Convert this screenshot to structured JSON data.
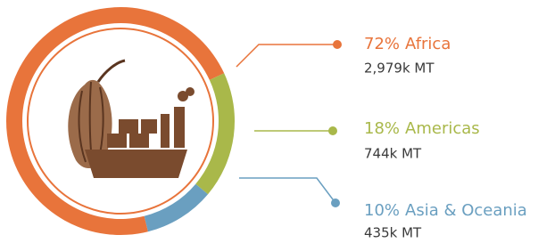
{
  "chart_data": {
    "type": "donut",
    "categories": [
      "Africa",
      "Americas",
      "Asia & Oceania"
    ],
    "values": [
      72,
      18,
      10
    ],
    "value_labels": [
      "72%",
      "18%",
      "10%"
    ],
    "volume_labels": [
      "2,979k MT",
      "744k MT",
      "435k MT"
    ],
    "colors": [
      "#e8743b",
      "#a9b84a",
      "#6a9fc0"
    ]
  }
}
